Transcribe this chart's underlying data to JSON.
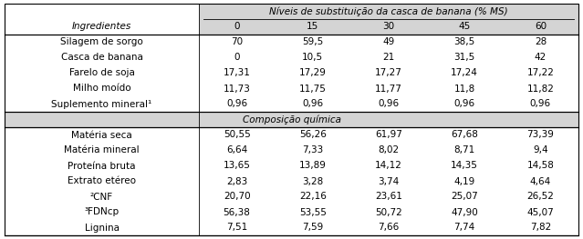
{
  "title_row": "Níveis de substituição da casca de banana (% MS)",
  "col_header_left": "Ingredientes",
  "col_headers": [
    "0",
    "15",
    "30",
    "45",
    "60"
  ],
  "section1_rows": [
    [
      "Silagem de sorgo",
      "70",
      "59,5",
      "49",
      "38,5",
      "28"
    ],
    [
      "Casca de banana",
      "0",
      "10,5",
      "21",
      "31,5",
      "42"
    ],
    [
      "Farelo de soja",
      "17,31",
      "17,29",
      "17,27",
      "17,24",
      "17,22"
    ],
    [
      "Milho moído",
      "11,73",
      "11,75",
      "11,77",
      "11,8",
      "11,82"
    ],
    [
      "Suplemento mineral¹",
      "0,96",
      "0,96",
      "0,96",
      "0,96",
      "0,96"
    ]
  ],
  "section2_header": "Composição química",
  "section2_rows": [
    [
      "Matéria seca",
      "50,55",
      "56,26",
      "61,97",
      "67,68",
      "73,39"
    ],
    [
      "Matéria mineral",
      "6,64",
      "7,33",
      "8,02",
      "8,71",
      "9,4"
    ],
    [
      "Proteína bruta",
      "13,65",
      "13,89",
      "14,12",
      "14,35",
      "14,58"
    ],
    [
      "Extrato etéreo",
      "2,83",
      "3,28",
      "3,74",
      "4,19",
      "4,64"
    ],
    [
      "²CNF",
      "20,70",
      "22,16",
      "23,61",
      "25,07",
      "26,52"
    ],
    [
      "³FDNcp",
      "56,38",
      "53,55",
      "50,72",
      "47,90",
      "45,07"
    ],
    [
      "Lignina",
      "7,51",
      "7,59",
      "7,66",
      "7,74",
      "7,82"
    ]
  ],
  "font_size": 7.5,
  "figwidth": 6.39,
  "figheight": 2.63,
  "dpi": 100
}
